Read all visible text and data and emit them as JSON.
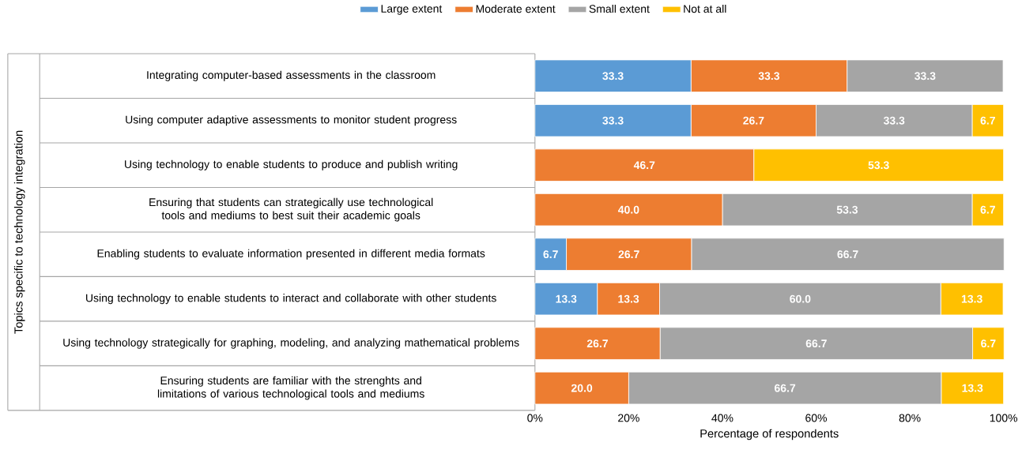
{
  "chart_data": {
    "type": "bar",
    "orientation": "horizontal",
    "stacked": true,
    "legend": "top",
    "xlabel": "Percentage of respondents",
    "ylabel": "Topics specific to technology integration",
    "categories": [
      "Integrating computer-based assessments in the classroom",
      "Using computer adaptive assessments to monitor student progress",
      "Using technology to enable students to produce and publish writing",
      "Ensuring that students can strategically use technological tools and mediums to best suit their academic goals",
      "Enabling students to evaluate information presented in different media formats",
      "Using technology to enable students to interact and collaborate with other students",
      "Using technology strategically for graphing, modeling, and analyzing mathematical problems",
      "Ensuring students are familiar with the strenghts and limitations of various technological tools and mediums"
    ],
    "series": [
      {
        "name": "Large extent",
        "color": "#5b9bd5",
        "values": [
          33.3,
          33.3,
          null,
          null,
          6.7,
          13.3,
          null,
          null
        ],
        "value_labels": [
          "33.3",
          "33.3",
          null,
          null,
          "6.7",
          "13.3",
          null,
          null
        ]
      },
      {
        "name": "Moderate extent",
        "color": "#ed7d31",
        "values": [
          33.3,
          26.7,
          46.7,
          40.0,
          26.7,
          13.3,
          26.7,
          20.0
        ],
        "value_labels": [
          "33.3",
          "26.7",
          "46.7",
          "40.0",
          "26.7",
          "13.3",
          "26.7",
          "20.0"
        ]
      },
      {
        "name": "Small extent",
        "color": "#a5a5a5",
        "values": [
          33.3,
          33.3,
          null,
          53.3,
          66.7,
          60.0,
          66.7,
          66.7
        ],
        "value_labels": [
          "33.3",
          "33.3",
          null,
          "53.3",
          "66.7",
          "60.0",
          "66.7",
          "66.7"
        ]
      },
      {
        "name": "Not at all",
        "color": "#ffc000",
        "values": [
          null,
          6.7,
          53.3,
          6.7,
          null,
          13.3,
          6.7,
          13.3
        ],
        "value_labels": [
          null,
          "6.7",
          "53.3",
          "6.7",
          null,
          "13.3",
          "6.7",
          "13.3"
        ]
      }
    ],
    "xlim": [
      0,
      100
    ],
    "xticks": [
      {
        "value": 0,
        "label": "0%"
      },
      {
        "value": 20,
        "label": "20%"
      },
      {
        "value": 40,
        "label": "40%"
      },
      {
        "value": 60,
        "label": "60%"
      },
      {
        "value": 80,
        "label": "80%"
      },
      {
        "value": 100,
        "label": "100%"
      }
    ]
  }
}
